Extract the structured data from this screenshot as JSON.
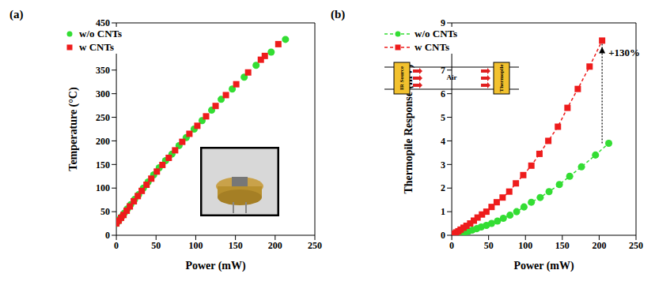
{
  "chart_data": [
    {
      "type": "scatter",
      "title": "(a)",
      "x_label": "Power (mW)",
      "y_label": "Temperature (°C)",
      "xlim": [
        0,
        250
      ],
      "xticks": [
        0,
        50,
        100,
        150,
        200,
        250
      ],
      "ylim": [
        0,
        450
      ],
      "yticks": [
        0,
        50,
        100,
        150,
        200,
        250,
        300,
        350,
        400,
        450
      ],
      "legend": "upper left",
      "series": [
        {
          "name": "w/o CNTs",
          "color": "#33dd33",
          "marker": "circle",
          "x": [
            0,
            2,
            4,
            7,
            10,
            14,
            18,
            23,
            28,
            34,
            40,
            47,
            54,
            62,
            70,
            79,
            88,
            98,
            108,
            120,
            132,
            146,
            161,
            176,
            195,
            213
          ],
          "values": [
            25,
            29,
            34,
            40,
            47,
            56,
            65,
            76,
            86,
            100,
            113,
            128,
            143,
            158,
            172,
            190,
            207,
            225,
            243,
            265,
            288,
            310,
            335,
            360,
            388,
            415
          ]
        },
        {
          "name": "w CNTs",
          "color": "#ee1c1c",
          "marker": "square",
          "x": [
            0,
            3,
            6,
            9,
            13,
            17,
            22,
            27,
            32,
            38,
            44,
            51,
            58,
            66,
            74,
            83,
            92,
            102,
            113,
            125,
            138,
            151,
            166,
            182,
            187,
            204
          ],
          "values": [
            25,
            31,
            37,
            43,
            52,
            61,
            72,
            83,
            94,
            107,
            120,
            135,
            149,
            164,
            180,
            198,
            215,
            232,
            252,
            274,
            297,
            320,
            345,
            372,
            380,
            405
          ]
        }
      ]
    },
    {
      "type": "line",
      "title": "(b)",
      "x_label": "Power (mW)",
      "y_label": "Thermopile Response (mV)",
      "xlim": [
        0,
        250
      ],
      "xticks": [
        0,
        50,
        100,
        150,
        200,
        250
      ],
      "ylim": [
        0,
        9
      ],
      "yticks": [
        0,
        1,
        2,
        3,
        4,
        5,
        6,
        7,
        8,
        9
      ],
      "legend": "upper left",
      "annotations": [
        "+130%"
      ],
      "inset_labels": [
        "IR Source",
        "Air",
        "Thermopile"
      ],
      "series": [
        {
          "name": "w/o CNTs",
          "color": "#33dd33",
          "marker": "circle",
          "line_style": "dashed",
          "x": [
            0,
            2,
            4,
            7,
            10,
            14,
            18,
            23,
            28,
            34,
            40,
            47,
            54,
            62,
            70,
            79,
            88,
            98,
            108,
            120,
            132,
            146,
            160,
            176,
            195,
            213
          ],
          "values": [
            0,
            0.02,
            0.03,
            0.05,
            0.07,
            0.1,
            0.13,
            0.17,
            0.22,
            0.28,
            0.35,
            0.42,
            0.5,
            0.6,
            0.72,
            0.85,
            1.0,
            1.2,
            1.4,
            1.6,
            1.85,
            2.15,
            2.5,
            2.9,
            3.4,
            3.9
          ]
        },
        {
          "name": "w CNTs",
          "color": "#ee1c1c",
          "marker": "square",
          "line_style": "dashed",
          "x": [
            0,
            3,
            6,
            9,
            12,
            16,
            20,
            25,
            30,
            35,
            41,
            47,
            54,
            61,
            69,
            78,
            87,
            97,
            108,
            119,
            131,
            144,
            157,
            171,
            187,
            204
          ],
          "values": [
            0.03,
            0.07,
            0.12,
            0.17,
            0.24,
            0.32,
            0.4,
            0.5,
            0.62,
            0.75,
            0.88,
            1.0,
            1.2,
            1.4,
            1.6,
            1.85,
            2.2,
            2.55,
            2.95,
            3.45,
            4.0,
            4.6,
            5.4,
            6.2,
            7.15,
            8.25
          ]
        }
      ]
    }
  ]
}
